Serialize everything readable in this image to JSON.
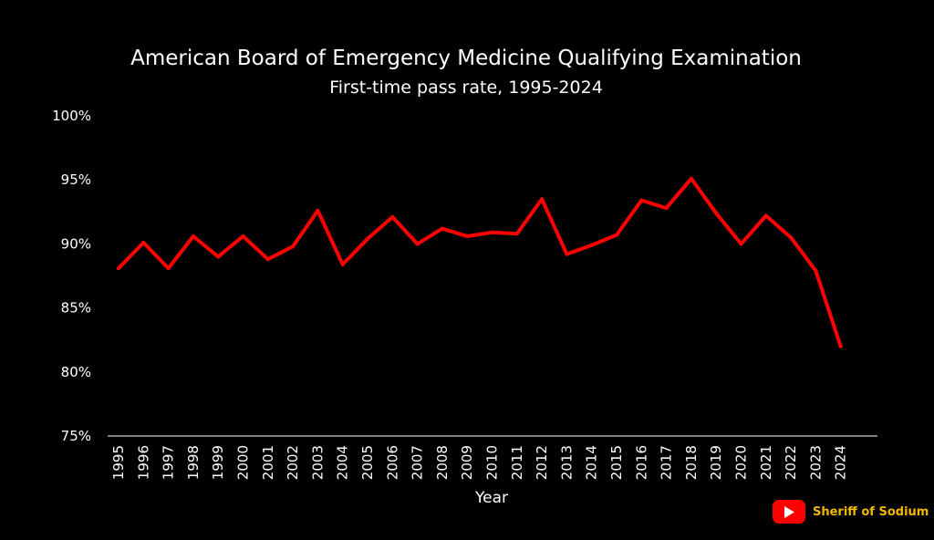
{
  "chart_data": {
    "type": "line",
    "title": "American Board of Emergency Medicine Qualifying Examination",
    "subtitle": "First-time pass rate, 1995-2024",
    "xlabel": "Year",
    "ylabel": "",
    "x": [
      "1995",
      "1996",
      "1997",
      "1998",
      "1999",
      "2000",
      "2001",
      "2002",
      "2003",
      "2004",
      "2005",
      "2006",
      "2007",
      "2008",
      "2009",
      "2010",
      "2011",
      "2012",
      "2013",
      "2014",
      "2015",
      "2016",
      "2017",
      "2018",
      "2019",
      "2020",
      "2021",
      "2022",
      "2023",
      "2024"
    ],
    "series": [
      {
        "name": "First-time pass rate",
        "values": [
          88.1,
          90.1,
          88.1,
          90.6,
          89.0,
          90.6,
          88.8,
          89.8,
          92.6,
          88.4,
          90.4,
          92.1,
          90.0,
          91.2,
          90.6,
          90.9,
          90.8,
          93.5,
          89.2,
          89.9,
          90.7,
          93.4,
          92.8,
          95.1,
          92.4,
          90.0,
          92.2,
          90.5,
          87.9,
          82.0
        ]
      }
    ],
    "ylim": [
      75,
      100
    ],
    "yticks": [
      75,
      80,
      85,
      90,
      95,
      100
    ],
    "ytick_labels": [
      "75%",
      "80%",
      "85%",
      "90%",
      "95%",
      "100%"
    ],
    "grid": false,
    "line_color": "#ff0000",
    "background": "#000000"
  },
  "watermark": {
    "icon": "youtube-play-icon",
    "channel": "Sheriff of Sodium",
    "icon_color": "#ff0000",
    "text_color": "#f2b800"
  }
}
